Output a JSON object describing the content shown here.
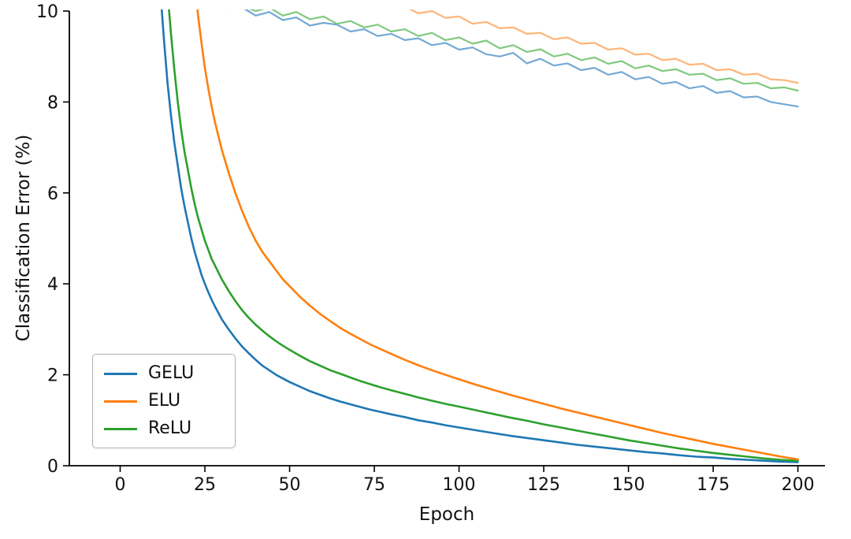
{
  "chart_data": {
    "type": "line",
    "title": "",
    "xlabel": "Epoch",
    "ylabel": "Classification Error (%)",
    "xlim": [
      -15,
      208
    ],
    "ylim": [
      0,
      10
    ],
    "grid": false,
    "x_ticks": [
      0,
      25,
      50,
      75,
      100,
      125,
      150,
      175,
      200
    ],
    "y_ticks": [
      0,
      2,
      4,
      6,
      8,
      10
    ],
    "legend": {
      "position": "lower left",
      "entries": [
        {
          "label": "GELU",
          "color": "#1f77b4"
        },
        {
          "label": "ELU",
          "color": "#ff7f0e"
        },
        {
          "label": "ReLU",
          "color": "#2ca02c"
        }
      ]
    },
    "series": [
      {
        "name": "GELU-test",
        "color": "#74a9d4",
        "width": 2.2,
        "x": [
          30,
          32,
          36,
          40,
          44,
          48,
          52,
          56,
          60,
          64,
          68,
          72,
          76,
          80,
          84,
          88,
          92,
          96,
          100,
          104,
          108,
          112,
          116,
          120,
          124,
          128,
          132,
          136,
          140,
          144,
          148,
          152,
          156,
          160,
          164,
          168,
          172,
          176,
          180,
          184,
          188,
          192,
          196,
          200
        ],
        "y": [
          10.5,
          10.05,
          10.08,
          9.9,
          9.98,
          9.8,
          9.86,
          9.68,
          9.74,
          9.7,
          9.55,
          9.6,
          9.45,
          9.5,
          9.36,
          9.4,
          9.25,
          9.3,
          9.15,
          9.2,
          9.05,
          9.0,
          9.08,
          8.85,
          8.95,
          8.8,
          8.85,
          8.7,
          8.75,
          8.6,
          8.66,
          8.5,
          8.55,
          8.4,
          8.44,
          8.3,
          8.35,
          8.2,
          8.24,
          8.1,
          8.12,
          8.0,
          7.95,
          7.9
        ]
      },
      {
        "name": "ReLU-test",
        "color": "#80c97f",
        "width": 2.2,
        "x": [
          34,
          36,
          40,
          44,
          48,
          52,
          56,
          60,
          64,
          68,
          72,
          76,
          80,
          84,
          88,
          92,
          96,
          100,
          104,
          108,
          112,
          116,
          120,
          124,
          128,
          132,
          136,
          140,
          144,
          148,
          152,
          156,
          160,
          164,
          168,
          172,
          176,
          180,
          184,
          188,
          192,
          196,
          200
        ],
        "y": [
          10.5,
          10.1,
          10.0,
          10.08,
          9.9,
          9.98,
          9.82,
          9.88,
          9.72,
          9.78,
          9.64,
          9.7,
          9.55,
          9.6,
          9.45,
          9.52,
          9.36,
          9.42,
          9.28,
          9.35,
          9.18,
          9.25,
          9.1,
          9.16,
          9.0,
          9.06,
          8.92,
          8.98,
          8.84,
          8.9,
          8.74,
          8.8,
          8.68,
          8.72,
          8.6,
          8.62,
          8.48,
          8.52,
          8.4,
          8.42,
          8.3,
          8.32,
          8.25
        ]
      },
      {
        "name": "ELU-test",
        "color": "#ffb477",
        "width": 2.2,
        "x": [
          74,
          76,
          80,
          84,
          88,
          92,
          96,
          100,
          104,
          108,
          112,
          116,
          120,
          124,
          128,
          132,
          136,
          140,
          144,
          148,
          152,
          156,
          160,
          164,
          168,
          172,
          176,
          180,
          184,
          188,
          192,
          196,
          200
        ],
        "y": [
          10.5,
          10.15,
          10.05,
          10.1,
          9.95,
          10.0,
          9.85,
          9.88,
          9.72,
          9.76,
          9.62,
          9.64,
          9.5,
          9.52,
          9.38,
          9.42,
          9.28,
          9.3,
          9.15,
          9.18,
          9.04,
          9.06,
          8.92,
          8.95,
          8.82,
          8.84,
          8.7,
          8.72,
          8.6,
          8.62,
          8.5,
          8.48,
          8.42
        ]
      },
      {
        "name": "GELU-train",
        "color": "#1f77b4",
        "width": 2.6,
        "x": [
          11,
          12,
          13,
          14,
          15,
          16,
          17,
          18,
          19,
          20,
          21,
          22,
          23,
          24,
          25,
          26,
          27,
          28,
          29,
          30,
          32,
          34,
          36,
          38,
          40,
          42,
          44,
          46,
          48,
          50,
          53,
          56,
          59,
          62,
          65,
          68,
          71,
          74,
          77,
          80,
          84,
          88,
          92,
          96,
          100,
          105,
          110,
          115,
          120,
          125,
          130,
          135,
          140,
          145,
          150,
          155,
          160,
          165,
          170,
          175,
          180,
          185,
          190,
          195,
          200
        ],
        "y": [
          11.5,
          10.3,
          9.3,
          8.4,
          7.7,
          7.1,
          6.6,
          6.1,
          5.7,
          5.35,
          5.0,
          4.7,
          4.45,
          4.2,
          4.0,
          3.82,
          3.65,
          3.5,
          3.36,
          3.22,
          3.0,
          2.8,
          2.62,
          2.47,
          2.33,
          2.2,
          2.1,
          2.0,
          1.92,
          1.84,
          1.74,
          1.64,
          1.56,
          1.48,
          1.41,
          1.35,
          1.29,
          1.23,
          1.18,
          1.13,
          1.07,
          1.0,
          0.95,
          0.89,
          0.84,
          0.78,
          0.72,
          0.66,
          0.61,
          0.56,
          0.51,
          0.46,
          0.42,
          0.38,
          0.34,
          0.3,
          0.27,
          0.23,
          0.2,
          0.18,
          0.15,
          0.13,
          0.11,
          0.09,
          0.08
        ]
      },
      {
        "name": "ReLU-train",
        "color": "#2ca02c",
        "width": 2.6,
        "x": [
          13,
          14,
          15,
          16,
          17,
          18,
          19,
          20,
          21,
          22,
          23,
          24,
          25,
          26,
          27,
          28,
          29,
          30,
          32,
          34,
          36,
          38,
          40,
          42,
          44,
          46,
          48,
          50,
          53,
          56,
          59,
          62,
          65,
          68,
          71,
          74,
          77,
          80,
          84,
          88,
          92,
          96,
          100,
          105,
          110,
          115,
          120,
          125,
          130,
          135,
          140,
          145,
          150,
          155,
          160,
          165,
          170,
          175,
          180,
          185,
          190,
          195,
          200
        ],
        "y": [
          11.5,
          10.4,
          9.5,
          8.7,
          8.0,
          7.4,
          6.9,
          6.5,
          6.1,
          5.75,
          5.45,
          5.2,
          4.95,
          4.75,
          4.55,
          4.4,
          4.25,
          4.1,
          3.85,
          3.62,
          3.42,
          3.25,
          3.1,
          2.97,
          2.85,
          2.74,
          2.64,
          2.55,
          2.42,
          2.3,
          2.2,
          2.1,
          2.02,
          1.94,
          1.86,
          1.79,
          1.72,
          1.66,
          1.58,
          1.5,
          1.43,
          1.36,
          1.3,
          1.22,
          1.14,
          1.06,
          0.99,
          0.91,
          0.84,
          0.77,
          0.7,
          0.63,
          0.56,
          0.5,
          0.44,
          0.38,
          0.33,
          0.28,
          0.24,
          0.2,
          0.16,
          0.13,
          0.11
        ]
      },
      {
        "name": "ELU-train",
        "color": "#ff7f0e",
        "width": 2.6,
        "x": [
          21,
          22,
          23,
          24,
          25,
          26,
          27,
          28,
          29,
          30,
          32,
          34,
          36,
          38,
          40,
          42,
          44,
          46,
          48,
          50,
          53,
          56,
          59,
          62,
          65,
          68,
          71,
          74,
          77,
          80,
          84,
          88,
          92,
          96,
          100,
          105,
          110,
          115,
          120,
          125,
          130,
          135,
          140,
          145,
          150,
          155,
          160,
          165,
          170,
          175,
          180,
          185,
          190,
          195,
          200
        ],
        "y": [
          11.5,
          10.6,
          9.9,
          9.3,
          8.75,
          8.3,
          7.9,
          7.55,
          7.25,
          6.95,
          6.45,
          6.0,
          5.6,
          5.25,
          4.95,
          4.7,
          4.5,
          4.3,
          4.1,
          3.95,
          3.72,
          3.52,
          3.34,
          3.18,
          3.03,
          2.9,
          2.78,
          2.66,
          2.56,
          2.46,
          2.33,
          2.21,
          2.1,
          2.0,
          1.9,
          1.78,
          1.67,
          1.56,
          1.46,
          1.36,
          1.26,
          1.17,
          1.08,
          0.99,
          0.9,
          0.81,
          0.72,
          0.64,
          0.56,
          0.48,
          0.41,
          0.34,
          0.27,
          0.2,
          0.14
        ]
      }
    ]
  }
}
